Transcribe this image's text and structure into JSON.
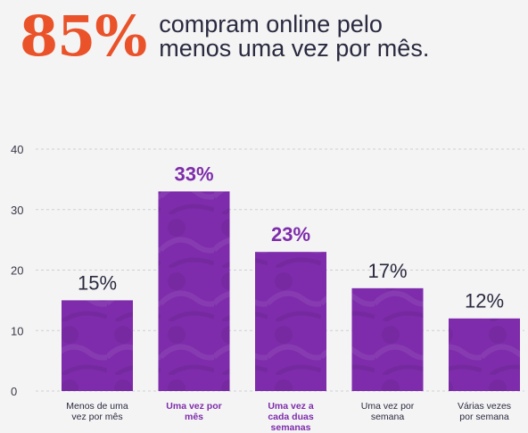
{
  "headline": {
    "percent": "85%",
    "line1": "compram online pelo",
    "line2": "menos uma vez por mês."
  },
  "colors": {
    "accent": "#ea5229",
    "bar": "#7e2cab",
    "highlight_text": "#7e2cab",
    "text": "#2a2a40"
  },
  "chart_data": {
    "type": "bar",
    "categories": [
      [
        "Menos de uma",
        "vez por mês"
      ],
      [
        "Uma vez por",
        "mês"
      ],
      [
        "Uma vez a",
        "cada duas",
        "semanas"
      ],
      [
        "Uma vez por",
        "semana"
      ],
      [
        "Várias vezes",
        "por semana"
      ]
    ],
    "values": [
      15,
      33,
      23,
      17,
      12
    ],
    "value_labels": [
      "15%",
      "33%",
      "23%",
      "17%",
      "12%"
    ],
    "highlighted": [
      false,
      true,
      true,
      false,
      false
    ],
    "yticks": [
      "0",
      "10",
      "20",
      "30",
      "40"
    ],
    "ylim": [
      0,
      40
    ],
    "grid": true
  }
}
